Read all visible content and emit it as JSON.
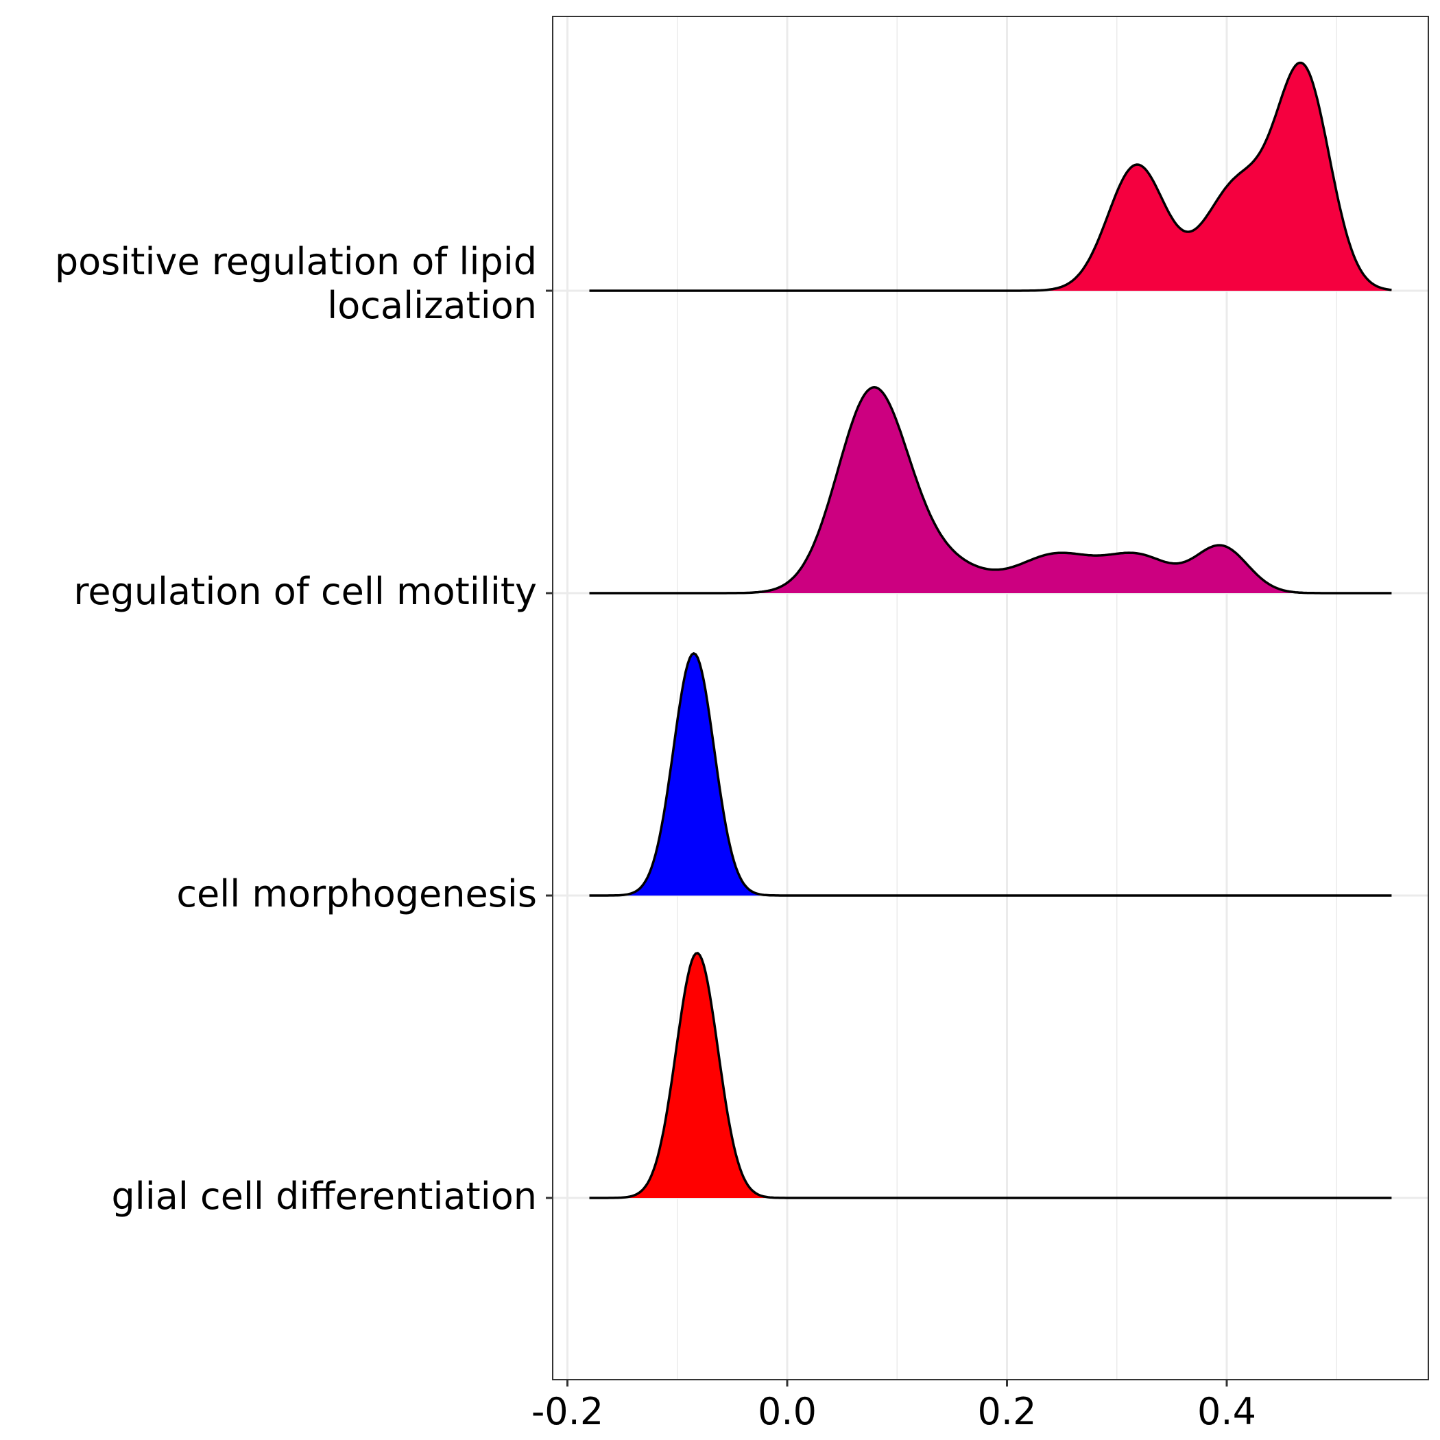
{
  "chart_data": {
    "type": "ridgeline",
    "title": "",
    "xlabel": "",
    "ylabel": "",
    "xlim": [
      -0.2,
      0.58
    ],
    "x_ticks": [
      "-0.2",
      "0.0",
      "0.2",
      "0.4"
    ],
    "x_tick_values": [
      -0.2,
      0.0,
      0.2,
      0.4
    ],
    "x_minor_values": [
      -0.1,
      0.1,
      0.3,
      0.5
    ],
    "x_range": [
      -0.18,
      0.55
    ],
    "grid": true,
    "ridge_height": 2.0,
    "series": [
      {
        "name": "glial cell differentiation",
        "label_lines": [
          "glial cell differentiation"
        ],
        "fill": "#FF0000",
        "components": [
          {
            "mu": -0.082,
            "sigma": 0.019,
            "amp": 0.9
          }
        ]
      },
      {
        "name": "cell morphogenesis",
        "label_lines": [
          "cell morphogenesis"
        ],
        "fill": "#0000FF",
        "components": [
          {
            "mu": -0.085,
            "sigma": 0.0185,
            "amp": 0.89
          }
        ]
      },
      {
        "name": "regulation of cell motility",
        "label_lines": [
          "regulation of cell motility"
        ],
        "fill": "#CC0080",
        "components": [
          {
            "mu": 0.078,
            "sigma": 0.032,
            "amp": 0.74
          },
          {
            "mu": 0.145,
            "sigma": 0.035,
            "amp": 0.1
          },
          {
            "mu": 0.245,
            "sigma": 0.035,
            "amp": 0.14
          },
          {
            "mu": 0.32,
            "sigma": 0.03,
            "amp": 0.13
          },
          {
            "mu": 0.395,
            "sigma": 0.024,
            "amp": 0.17
          }
        ]
      },
      {
        "name": "positive regulation of lipid localization",
        "label_lines": [
          "positive regulation of lipid",
          "localization"
        ],
        "fill": "#F5003F",
        "components": [
          {
            "mu": 0.318,
            "sigma": 0.026,
            "amp": 0.46
          },
          {
            "mu": 0.41,
            "sigma": 0.03,
            "amp": 0.39
          },
          {
            "mu": 0.47,
            "sigma": 0.024,
            "amp": 0.78
          }
        ]
      }
    ]
  }
}
